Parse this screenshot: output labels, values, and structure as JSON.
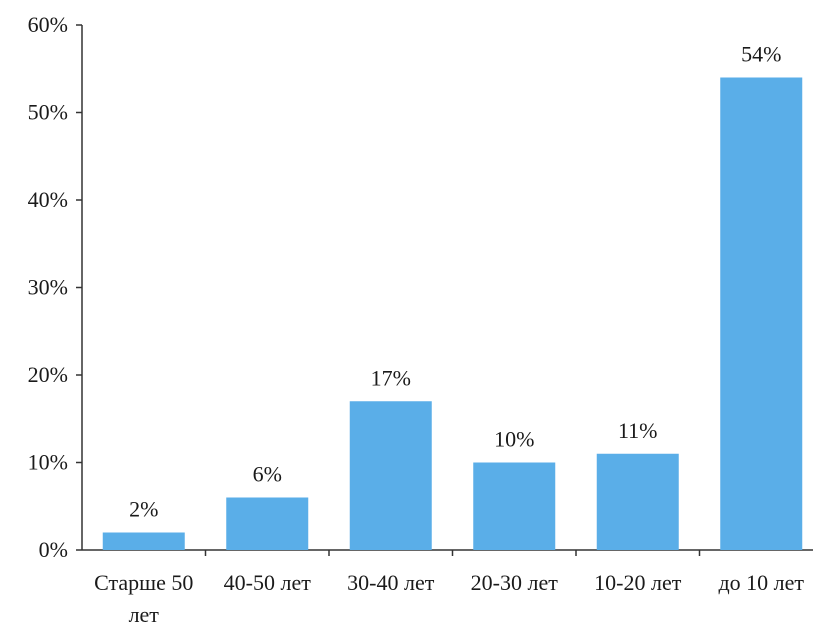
{
  "chart_data": {
    "type": "bar",
    "categories": [
      [
        "Старше 50",
        "лет"
      ],
      [
        "40-50 лет"
      ],
      [
        "30-40 лет"
      ],
      [
        "20-30 лет"
      ],
      [
        "10-20 лет"
      ],
      [
        "до 10 лет"
      ]
    ],
    "values": [
      2,
      6,
      17,
      10,
      11,
      54
    ],
    "data_labels": [
      "2%",
      "6%",
      "17%",
      "10%",
      "11%",
      "54%"
    ],
    "y_ticks": [
      "0%",
      "10%",
      "20%",
      "30%",
      "40%",
      "50%",
      "60%"
    ],
    "ylim": [
      0,
      60
    ],
    "bar_color": "#5aaee8",
    "grid": false
  }
}
